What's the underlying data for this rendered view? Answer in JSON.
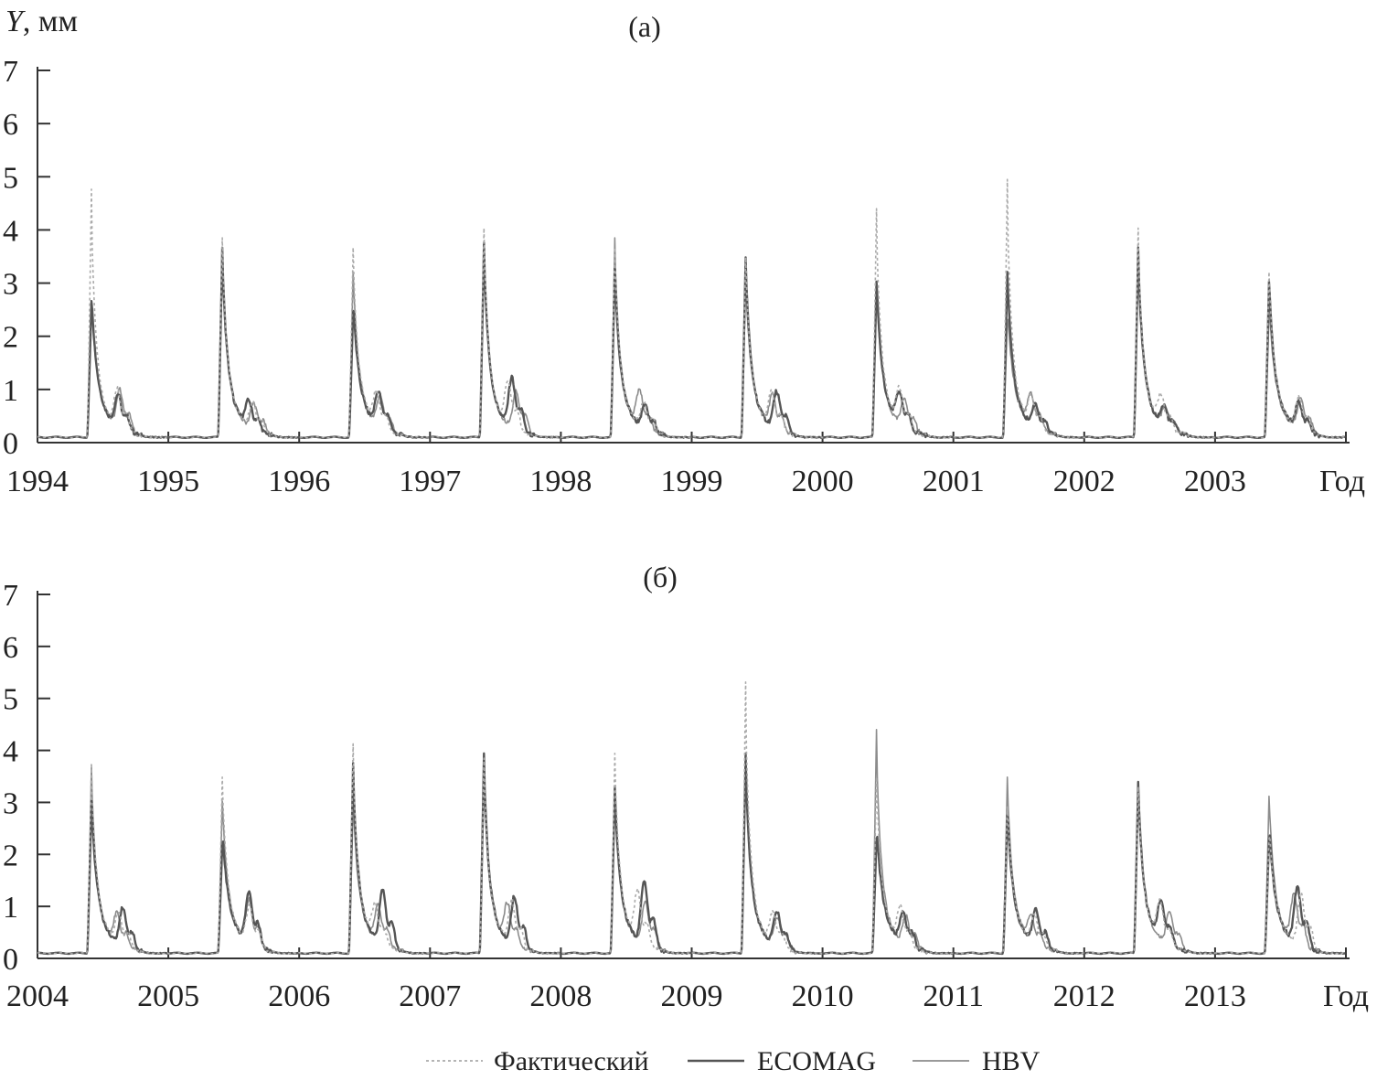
{
  "chart_data": [
    {
      "type": "line",
      "title": "(a)",
      "ylabel_var": "Y",
      "ylabel_unit": ", мм",
      "xlabel": "Год",
      "ylim": [
        0,
        7
      ],
      "yticks": [
        "0",
        "1",
        "2",
        "3",
        "4",
        "5",
        "6",
        "7"
      ],
      "xticks": [
        "1994",
        "1995",
        "1996",
        "1997",
        "1998",
        "1999",
        "2000",
        "2001",
        "2002",
        "2003"
      ],
      "x_start": 1994,
      "years": [
        1994,
        1995,
        1996,
        1997,
        1998,
        1999,
        2000,
        2001,
        2002,
        2003
      ],
      "series": [
        {
          "name": "Фактический",
          "color": "#aaaaaa",
          "peak": [
            5.2,
            4.2,
            4.0,
            4.4,
            4.0,
            3.8,
            4.8,
            5.4,
            4.4,
            3.5
          ],
          "summer": [
            1.3,
            0.9,
            1.1,
            1.5,
            0.9,
            1.2,
            1.2,
            1.0,
            1.0,
            1.1
          ]
        },
        {
          "name": "ECOMAG",
          "color": "#555555",
          "peak": [
            2.9,
            4.0,
            2.7,
            4.1,
            3.6,
            3.8,
            3.3,
            3.5,
            4.0,
            3.3
          ],
          "summer": [
            1.1,
            0.9,
            1.2,
            1.7,
            0.8,
            1.3,
            1.1,
            0.8,
            0.7,
            0.9
          ]
        },
        {
          "name": "HBV",
          "color": "#8c8c8c",
          "peak": [
            2.8,
            3.9,
            3.5,
            4.0,
            4.2,
            3.3,
            3.0,
            2.5,
            3.8,
            2.6
          ],
          "summer": [
            1.3,
            0.9,
            1.1,
            1.3,
            1.2,
            1.1,
            1.0,
            1.1,
            0.7,
            1.1
          ]
        }
      ]
    },
    {
      "type": "line",
      "title": "(б)",
      "xlabel": "Год",
      "ylim": [
        0,
        7
      ],
      "yticks": [
        "0",
        "1",
        "2",
        "3",
        "4",
        "5",
        "6",
        "7"
      ],
      "xticks": [
        "2004",
        "2005",
        "2006",
        "2007",
        "2008",
        "2009",
        "2010",
        "2011",
        "2012",
        "2013"
      ],
      "x_start": 2004,
      "years": [
        2004,
        2005,
        2006,
        2007,
        2008,
        2009,
        2010,
        2011,
        2012,
        2013
      ],
      "series": [
        {
          "name": "Фактический",
          "color": "#aaaaaa",
          "peak": [
            4.1,
            3.8,
            4.5,
            4.2,
            4.3,
            5.8,
            3.8,
            3.2,
            3.6,
            2.5
          ],
          "summer": [
            1.1,
            1.3,
            1.2,
            1.5,
            1.7,
            1.1,
            1.2,
            1.0,
            1.3,
            1.8
          ]
        },
        {
          "name": "ECOMAG",
          "color": "#555555",
          "peak": [
            3.3,
            2.4,
            4.1,
            4.3,
            3.6,
            4.3,
            2.5,
            3.0,
            3.7,
            2.5
          ],
          "summer": [
            1.3,
            1.8,
            1.9,
            1.7,
            2.2,
            1.2,
            1.1,
            1.2,
            1.4,
            2.0
          ]
        },
        {
          "name": "HBV",
          "color": "#8c8c8c",
          "peak": [
            4.0,
            3.3,
            3.2,
            3.8,
            3.5,
            4.2,
            4.8,
            3.8,
            3.6,
            3.4
          ],
          "summer": [
            1.0,
            1.5,
            1.3,
            1.3,
            1.5,
            1.0,
            1.0,
            0.9,
            1.2,
            1.7
          ]
        }
      ]
    }
  ],
  "legend": {
    "entries": [
      {
        "name": "Фактический",
        "style": "dotted",
        "color": "#aaaaaa"
      },
      {
        "name": "ECOMAG",
        "style": "solid-dark",
        "color": "#555555"
      },
      {
        "name": "HBV",
        "style": "solid-light",
        "color": "#8c8c8c"
      }
    ]
  }
}
